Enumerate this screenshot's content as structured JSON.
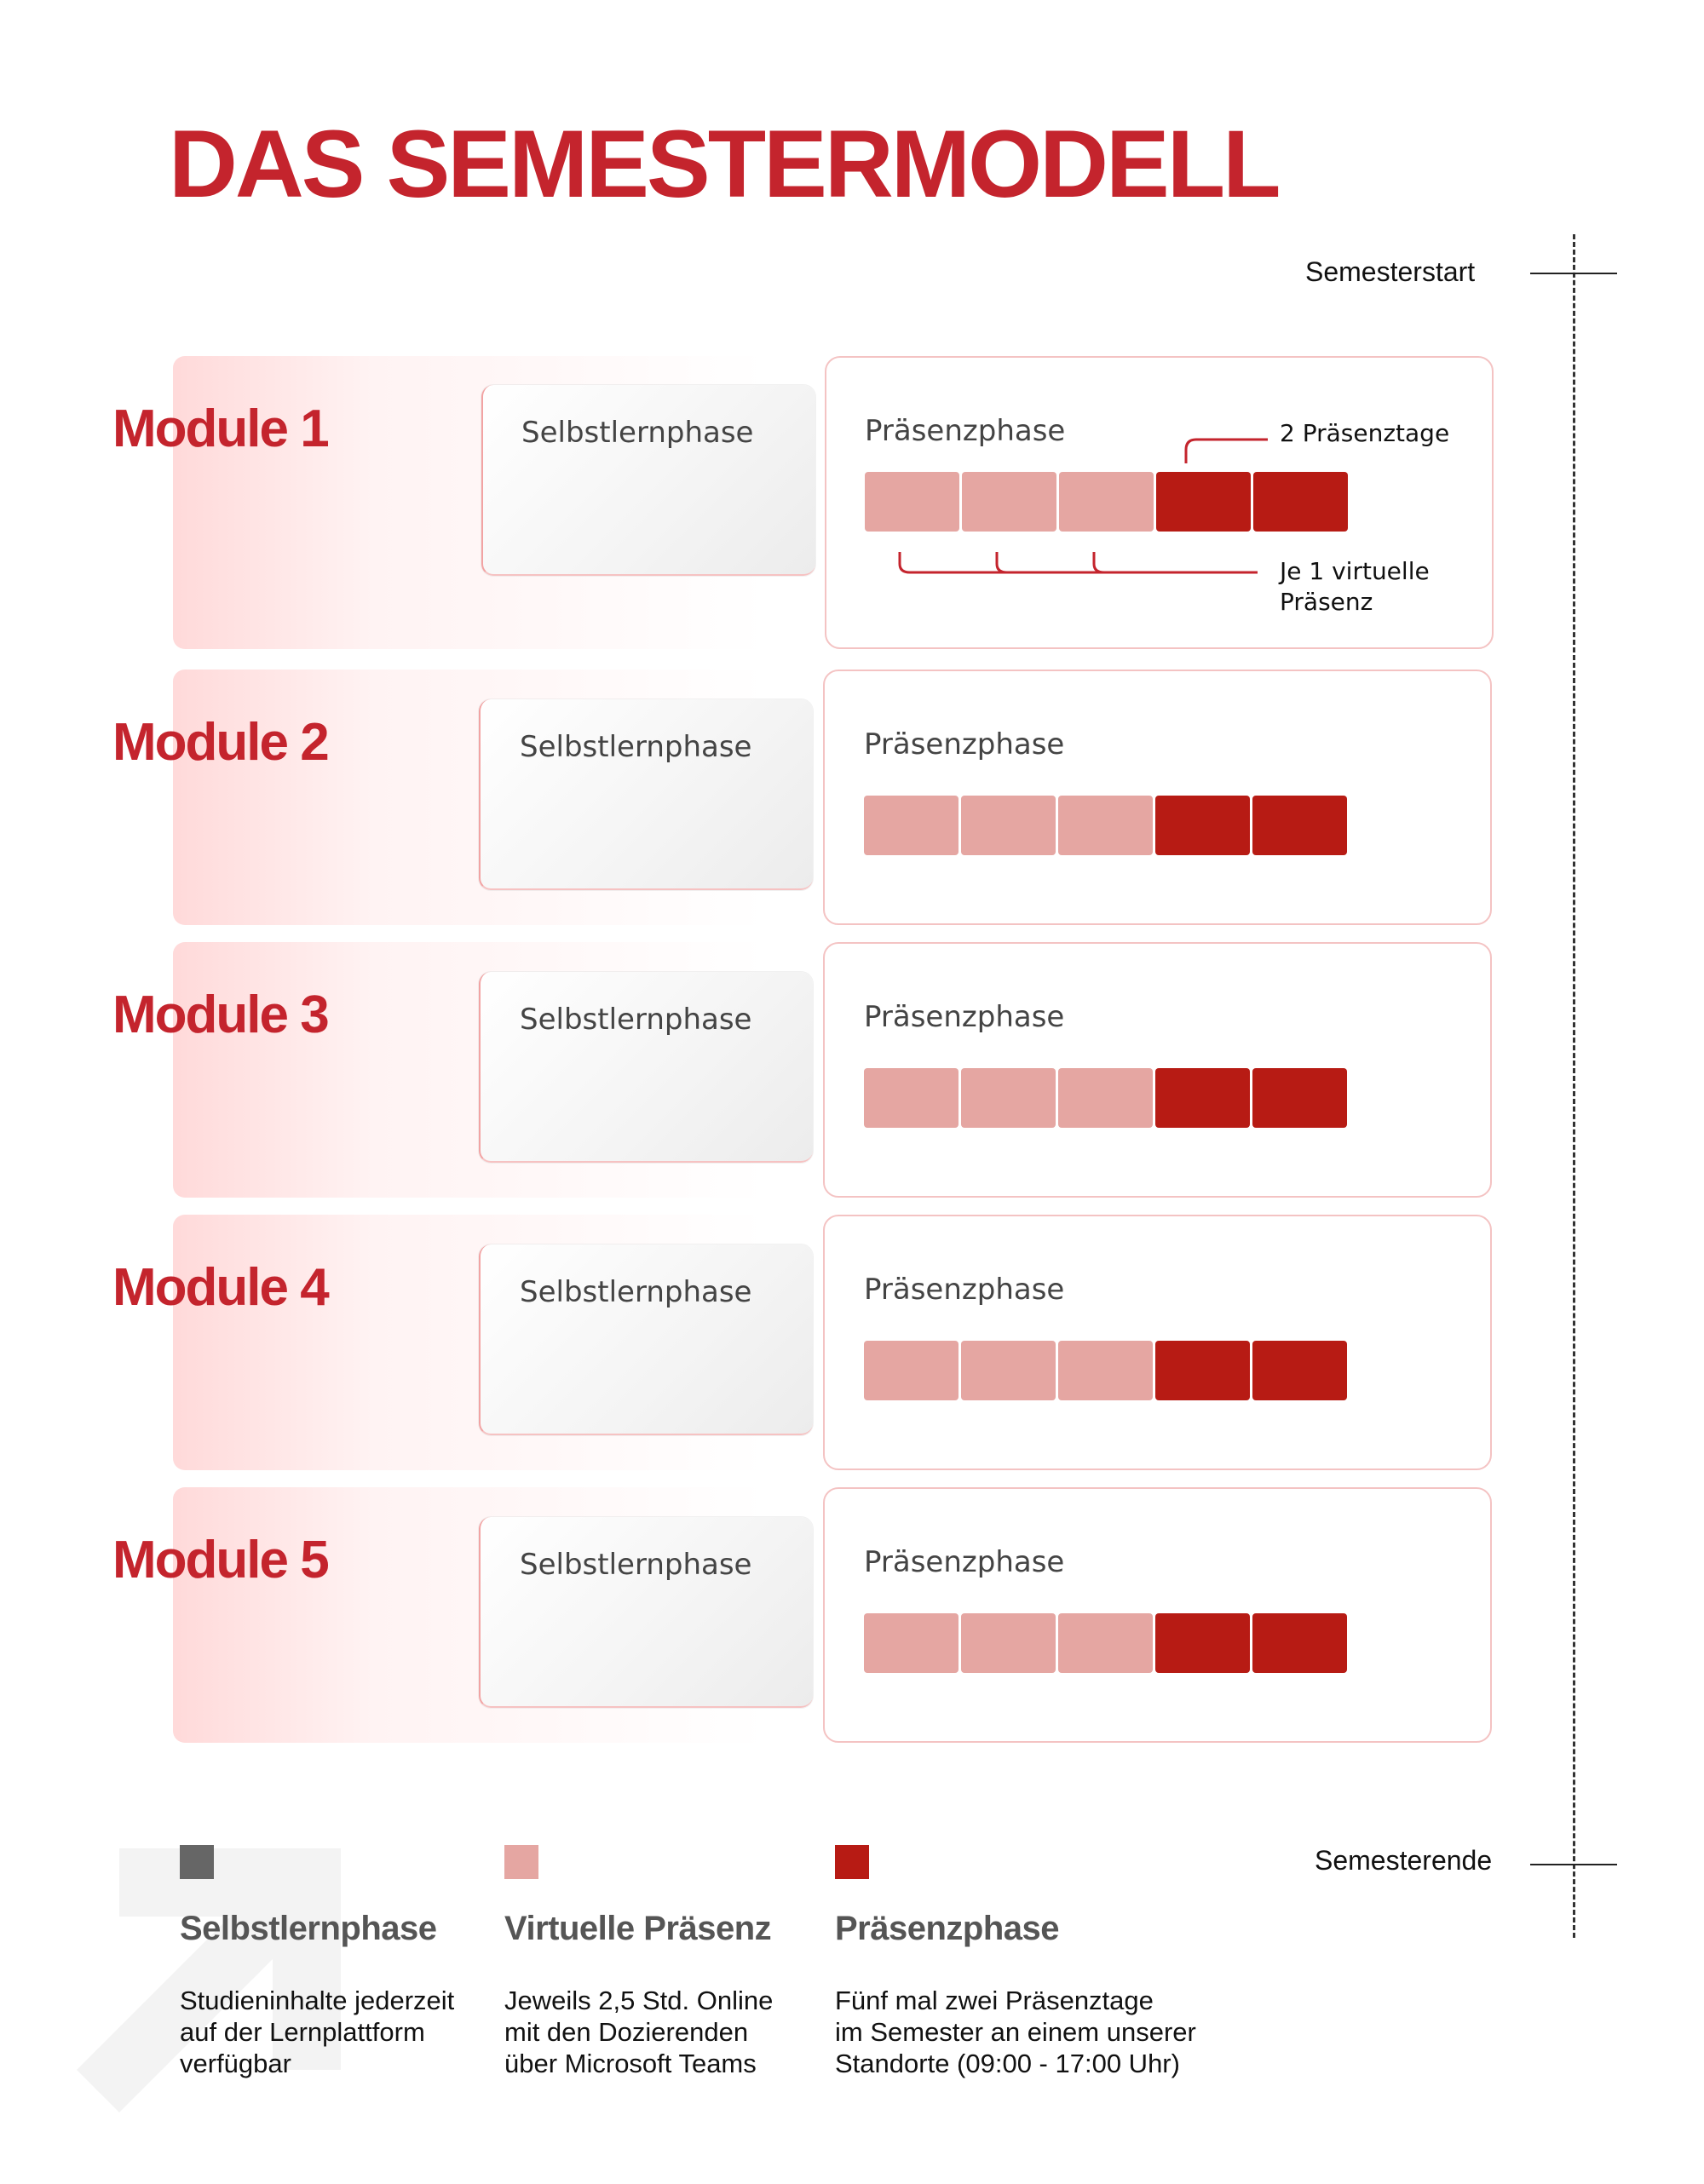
{
  "title": "DAS SEMESTERMODELL",
  "timeline": {
    "start_label": "Semesterstart",
    "end_label": "Semesterende"
  },
  "modules": [
    {
      "label": "Module 1",
      "self_label": "Selbstlernphase",
      "praesenz_label": "Präsenzphase"
    },
    {
      "label": "Module 2",
      "self_label": "Selbstlernphase",
      "praesenz_label": "Präsenzphase"
    },
    {
      "label": "Module 3",
      "self_label": "Selbstlernphase",
      "praesenz_label": "Präsenzphase"
    },
    {
      "label": "Module 4",
      "self_label": "Selbstlernphase",
      "praesenz_label": "Präsenzphase"
    },
    {
      "label": "Module 5",
      "self_label": "Selbstlernphase",
      "praesenz_label": "Präsenzphase"
    }
  ],
  "blocks_per_module": [
    "virtual",
    "virtual",
    "virtual",
    "praesenz",
    "praesenz"
  ],
  "annotations": {
    "praesenztage": "2 Präsenztage",
    "virtuell_line1": "Je 1 virtuelle",
    "virtuell_line2": "Präsenz"
  },
  "colors": {
    "self": "#666666",
    "virtual": "#e5a6a2",
    "praesenz": "#b71b14",
    "accent": "#c4242d"
  },
  "legend": [
    {
      "title": "Selbstlernphase",
      "lines": [
        "Studieninhalte jederzeit",
        "auf der Lernplattform",
        "verfügbar"
      ]
    },
    {
      "title": "Virtuelle Präsenz",
      "lines": [
        "Jeweils 2,5 Std.  Online",
        "mit den Dozierenden",
        "über Microsoft Teams"
      ]
    },
    {
      "title": "Präsenzphase",
      "lines": [
        "Fünf mal zwei Präsenztage",
        "im Semester  an einem unserer",
        "Standorte (09:00 - 17:00 Uhr)"
      ]
    }
  ]
}
